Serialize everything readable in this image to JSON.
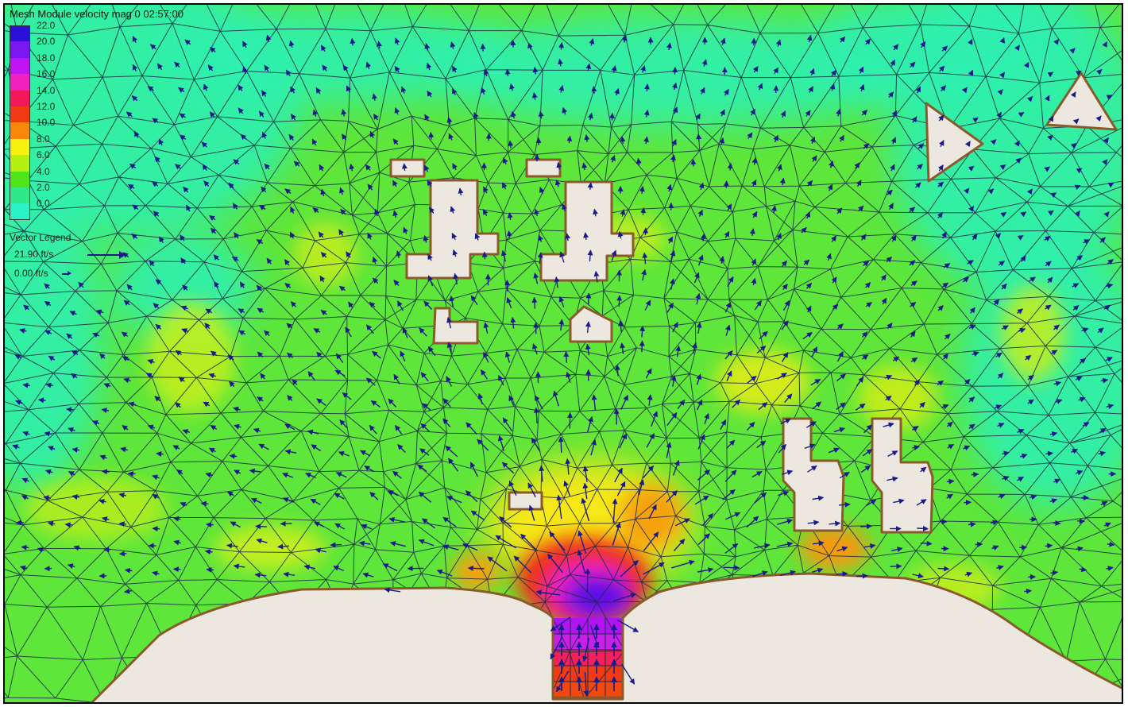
{
  "title": "Mesh Module velocity mag 0 02:57:00",
  "scale_legend": [
    {
      "label": "22.0",
      "color": "#2a10d8"
    },
    {
      "label": "20.0",
      "color": "#7a16f0"
    },
    {
      "label": "18.0",
      "color": "#c015f2"
    },
    {
      "label": "16.0",
      "color": "#ef22c0"
    },
    {
      "label": "14.0",
      "color": "#f4175a"
    },
    {
      "label": "12.0",
      "color": "#f03a12"
    },
    {
      "label": "10.0",
      "color": "#f7880a"
    },
    {
      "label": "8.0",
      "color": "#f6f10e"
    },
    {
      "label": "6.0",
      "color": "#b4f012"
    },
    {
      "label": "4.0",
      "color": "#4fe51a"
    },
    {
      "label": "2.0",
      "color": "#2ee88a"
    },
    {
      "label": "0.0",
      "color": "#2af2c6"
    }
  ],
  "vector_legend": {
    "title": "Vector Legend",
    "max_label": "21.90 ft/s",
    "min_label": "0.00 ft/s"
  },
  "colors": {
    "field_base": "#5ee63a",
    "field_low": "#2ff0b0",
    "land": "#ece8e0",
    "land_edge": "#8a5a2a",
    "mesh_line": "#1d2a45",
    "vector": "#1a1a8c"
  }
}
